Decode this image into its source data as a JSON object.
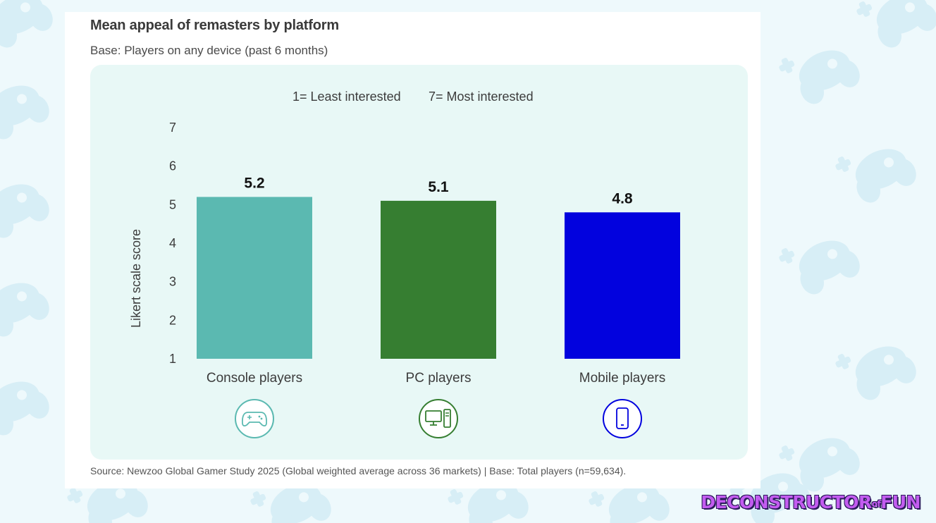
{
  "header": {
    "title": "Mean appeal of remasters by platform",
    "subtitle": "Base: Players on any device (past 6 months)"
  },
  "scale_note": {
    "low": "1= Least interested",
    "high": "7= Most interested"
  },
  "source": "Source: Newzoo Global Gamer Study 2025 (Global weighted average across 36 markets) | Base: Total players (n=59,634).",
  "logo": {
    "main": "DECONSTRUCTOR",
    "of": "of",
    "end": "FUN"
  },
  "colors": {
    "console": "#5bb9b1",
    "pc": "#367e31",
    "mobile": "#0202de",
    "background": "#eef9fc",
    "panel": "#e8f8f6"
  },
  "chart_data": {
    "type": "bar",
    "title": "Mean appeal of remasters by platform",
    "xlabel": "",
    "ylabel": "Likert scale score",
    "ylim": [
      1,
      7
    ],
    "yticks": [
      "1",
      "2",
      "3",
      "4",
      "5",
      "6",
      "7"
    ],
    "grid": false,
    "categories": [
      "Console players",
      "PC players",
      "Mobile players"
    ],
    "values": [
      5.2,
      5.1,
      4.8
    ],
    "value_labels": [
      "5.2",
      "5.1",
      "4.8"
    ],
    "bar_colors": [
      "#5bb9b1",
      "#367e31",
      "#0202de"
    ],
    "icons": [
      "gamepad-icon",
      "desktop-pc-icon",
      "smartphone-icon"
    ]
  }
}
